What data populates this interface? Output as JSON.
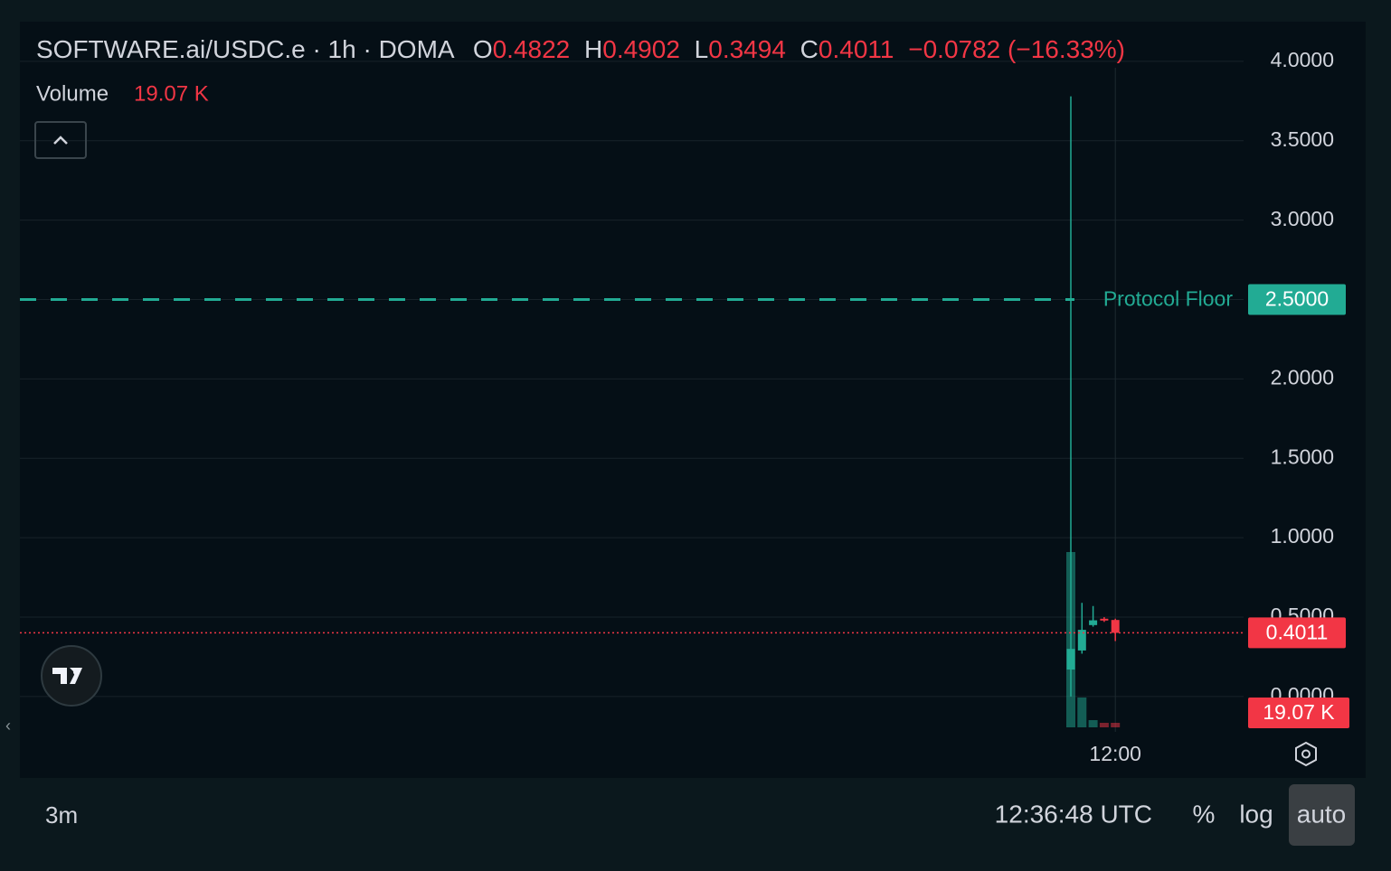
{
  "chart_data": {
    "type": "candlestick",
    "legend": {
      "symbol": "SOFTWARE.ai/USDC.e · 1h · DOMA",
      "open_label": "O",
      "high_label": "H",
      "low_label": "L",
      "close_label": "C",
      "change": {
        "value": -0.0782,
        "label": "−0.0782"
      },
      "change_pct": {
        "value": -16.33,
        "label": "(−16.33%)"
      }
    },
    "categories": [
      null,
      null,
      null,
      null,
      "12:00"
    ],
    "open": [
      0.17,
      0.29,
      0.45,
      0.49,
      0.4822
    ],
    "high": [
      3.78,
      0.59,
      0.57,
      0.5,
      0.4902
    ],
    "low": [
      0.0,
      0.27,
      0.44,
      0.47,
      0.3494
    ],
    "close": [
      0.3,
      0.42,
      0.48,
      0.48,
      0.4011
    ],
    "up_color": "#22ab94",
    "down_color": "#f23645",
    "volume": {
      "label": "Volume",
      "values": [
        740000,
        126000,
        30500,
        19000,
        19070
      ],
      "value_labels": [
        null,
        null,
        null,
        null,
        "19.07 K"
      ]
    },
    "protocol_floor": {
      "label": "Protocol Floor",
      "value": {
        "value": 2.5,
        "label": "2.5000"
      },
      "color": "#22ab94"
    },
    "ylim": [
      -0.12,
      4.25
    ],
    "yticks": [
      {
        "value": 0,
        "label": "0.0000"
      },
      {
        "value": 0.5,
        "label": "0.5000"
      },
      {
        "value": 1,
        "label": "1.0000"
      },
      {
        "value": 1.5,
        "label": "1.5000"
      },
      {
        "value": 2,
        "label": "2.0000"
      },
      {
        "value": 2.5,
        "label": "2.5000"
      },
      {
        "value": 3,
        "label": "3.0000"
      },
      {
        "value": 3.5,
        "label": "3.5000"
      },
      {
        "value": 4,
        "label": "4.0000"
      }
    ],
    "grid": true,
    "toolbar": {
      "range": "3m",
      "clock": "12:36:48 UTC",
      "percent": "%",
      "log": "log",
      "auto": "auto"
    }
  }
}
